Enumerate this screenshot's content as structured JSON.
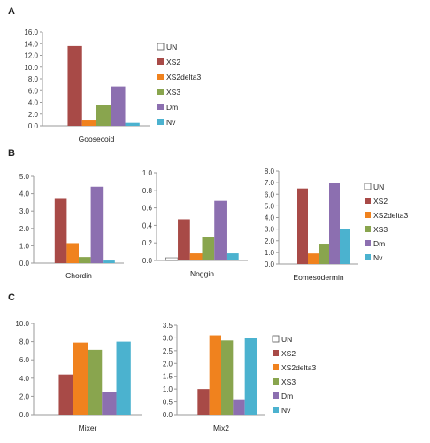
{
  "panels": {
    "a": "A",
    "b": "B",
    "c": "C"
  },
  "chart_data": [
    {
      "id": "goosecoid",
      "panel": "A",
      "type": "bar",
      "categories": [
        "Goosecoid"
      ],
      "series": [
        {
          "name": "UN",
          "values": [
            0
          ]
        },
        {
          "name": "XS2",
          "values": [
            13.6
          ]
        },
        {
          "name": "XS2delta3",
          "values": [
            0.9
          ]
        },
        {
          "name": "XS3",
          "values": [
            3.6
          ]
        },
        {
          "name": "Dm",
          "values": [
            6.7
          ]
        },
        {
          "name": "Nv",
          "values": [
            0.5
          ]
        }
      ],
      "ylim": [
        0,
        16
      ],
      "yticks": [
        "0.0",
        "2.0",
        "4.0",
        "6.0",
        "8.0",
        "10.0",
        "12.0",
        "14.0",
        "16.0"
      ],
      "legend": "right",
      "grid": false
    },
    {
      "id": "chordin",
      "panel": "B",
      "type": "bar",
      "categories": [
        "Chordin"
      ],
      "series": [
        {
          "name": "UN",
          "values": [
            0
          ]
        },
        {
          "name": "XS2",
          "values": [
            3.7
          ]
        },
        {
          "name": "XS2delta3",
          "values": [
            1.15
          ]
        },
        {
          "name": "XS3",
          "values": [
            0.35
          ]
        },
        {
          "name": "Dm",
          "values": [
            4.4
          ]
        },
        {
          "name": "Nv",
          "values": [
            0.15
          ]
        }
      ],
      "ylim": [
        0,
        5
      ],
      "yticks": [
        "0.0",
        "1.0",
        "2.0",
        "3.0",
        "4.0",
        "5.0"
      ],
      "legend": "none",
      "grid": false
    },
    {
      "id": "noggin",
      "panel": "B",
      "type": "bar",
      "categories": [
        "Noggin"
      ],
      "series": [
        {
          "name": "UN",
          "values": [
            0.03
          ]
        },
        {
          "name": "XS2",
          "values": [
            0.47
          ]
        },
        {
          "name": "XS2delta3",
          "values": [
            0.08
          ]
        },
        {
          "name": "XS3",
          "values": [
            0.27
          ]
        },
        {
          "name": "Dm",
          "values": [
            0.68
          ]
        },
        {
          "name": "Nv",
          "values": [
            0.08
          ]
        }
      ],
      "ylim": [
        0,
        1
      ],
      "yticks": [
        "0.0",
        "0.2",
        "0.4",
        "0.6",
        "0.8",
        "1.0"
      ],
      "legend": "none",
      "grid": false
    },
    {
      "id": "eomesodermin",
      "panel": "B",
      "type": "bar",
      "categories": [
        "Eomesodermin"
      ],
      "series": [
        {
          "name": "UN",
          "values": [
            0
          ]
        },
        {
          "name": "XS2",
          "values": [
            6.5
          ]
        },
        {
          "name": "XS2delta3",
          "values": [
            0.9
          ]
        },
        {
          "name": "XS3",
          "values": [
            1.75
          ]
        },
        {
          "name": "Dm",
          "values": [
            7.0
          ]
        },
        {
          "name": "Nv",
          "values": [
            3.0
          ]
        }
      ],
      "ylim": [
        0,
        8
      ],
      "yticks": [
        "0.0",
        "1.0",
        "2.0",
        "3.0",
        "4.0",
        "5.0",
        "6.0",
        "7.0",
        "8.0"
      ],
      "legend": "right",
      "grid": false
    },
    {
      "id": "mixer",
      "panel": "C",
      "type": "bar",
      "categories": [
        "Mixer"
      ],
      "series": [
        {
          "name": "UN",
          "values": [
            0
          ]
        },
        {
          "name": "XS2",
          "values": [
            4.4
          ]
        },
        {
          "name": "XS2delta3",
          "values": [
            7.9
          ]
        },
        {
          "name": "XS3",
          "values": [
            7.1
          ]
        },
        {
          "name": "Dm",
          "values": [
            2.5
          ]
        },
        {
          "name": "Nv",
          "values": [
            8.0
          ]
        }
      ],
      "ylim": [
        0,
        10
      ],
      "yticks": [
        "0.0",
        "2.0",
        "4.0",
        "6.0",
        "8.0",
        "10.0"
      ],
      "legend": "none",
      "grid": false
    },
    {
      "id": "mix2",
      "panel": "C",
      "type": "bar",
      "categories": [
        "Mix2"
      ],
      "series": [
        {
          "name": "UN",
          "values": [
            0
          ]
        },
        {
          "name": "XS2",
          "values": [
            1.0
          ]
        },
        {
          "name": "XS2delta3",
          "values": [
            3.1
          ]
        },
        {
          "name": "XS3",
          "values": [
            2.9
          ]
        },
        {
          "name": "Dm",
          "values": [
            0.6
          ]
        },
        {
          "name": "Nv",
          "values": [
            3.0
          ]
        }
      ],
      "ylim": [
        0,
        3.5
      ],
      "yticks": [
        "0.0",
        "0.5",
        "1.0",
        "1.5",
        "2.0",
        "2.5",
        "3.0",
        "3.5"
      ],
      "legend": "right",
      "grid": false
    }
  ],
  "colors": {
    "UN": "#ffffff",
    "XS2": "#a84a47",
    "XS2delta3": "#f0821e",
    "XS3": "#89a54e",
    "Dm": "#8c6fb0",
    "Nv": "#4bb2cf",
    "axis": "#9a9a9a"
  }
}
